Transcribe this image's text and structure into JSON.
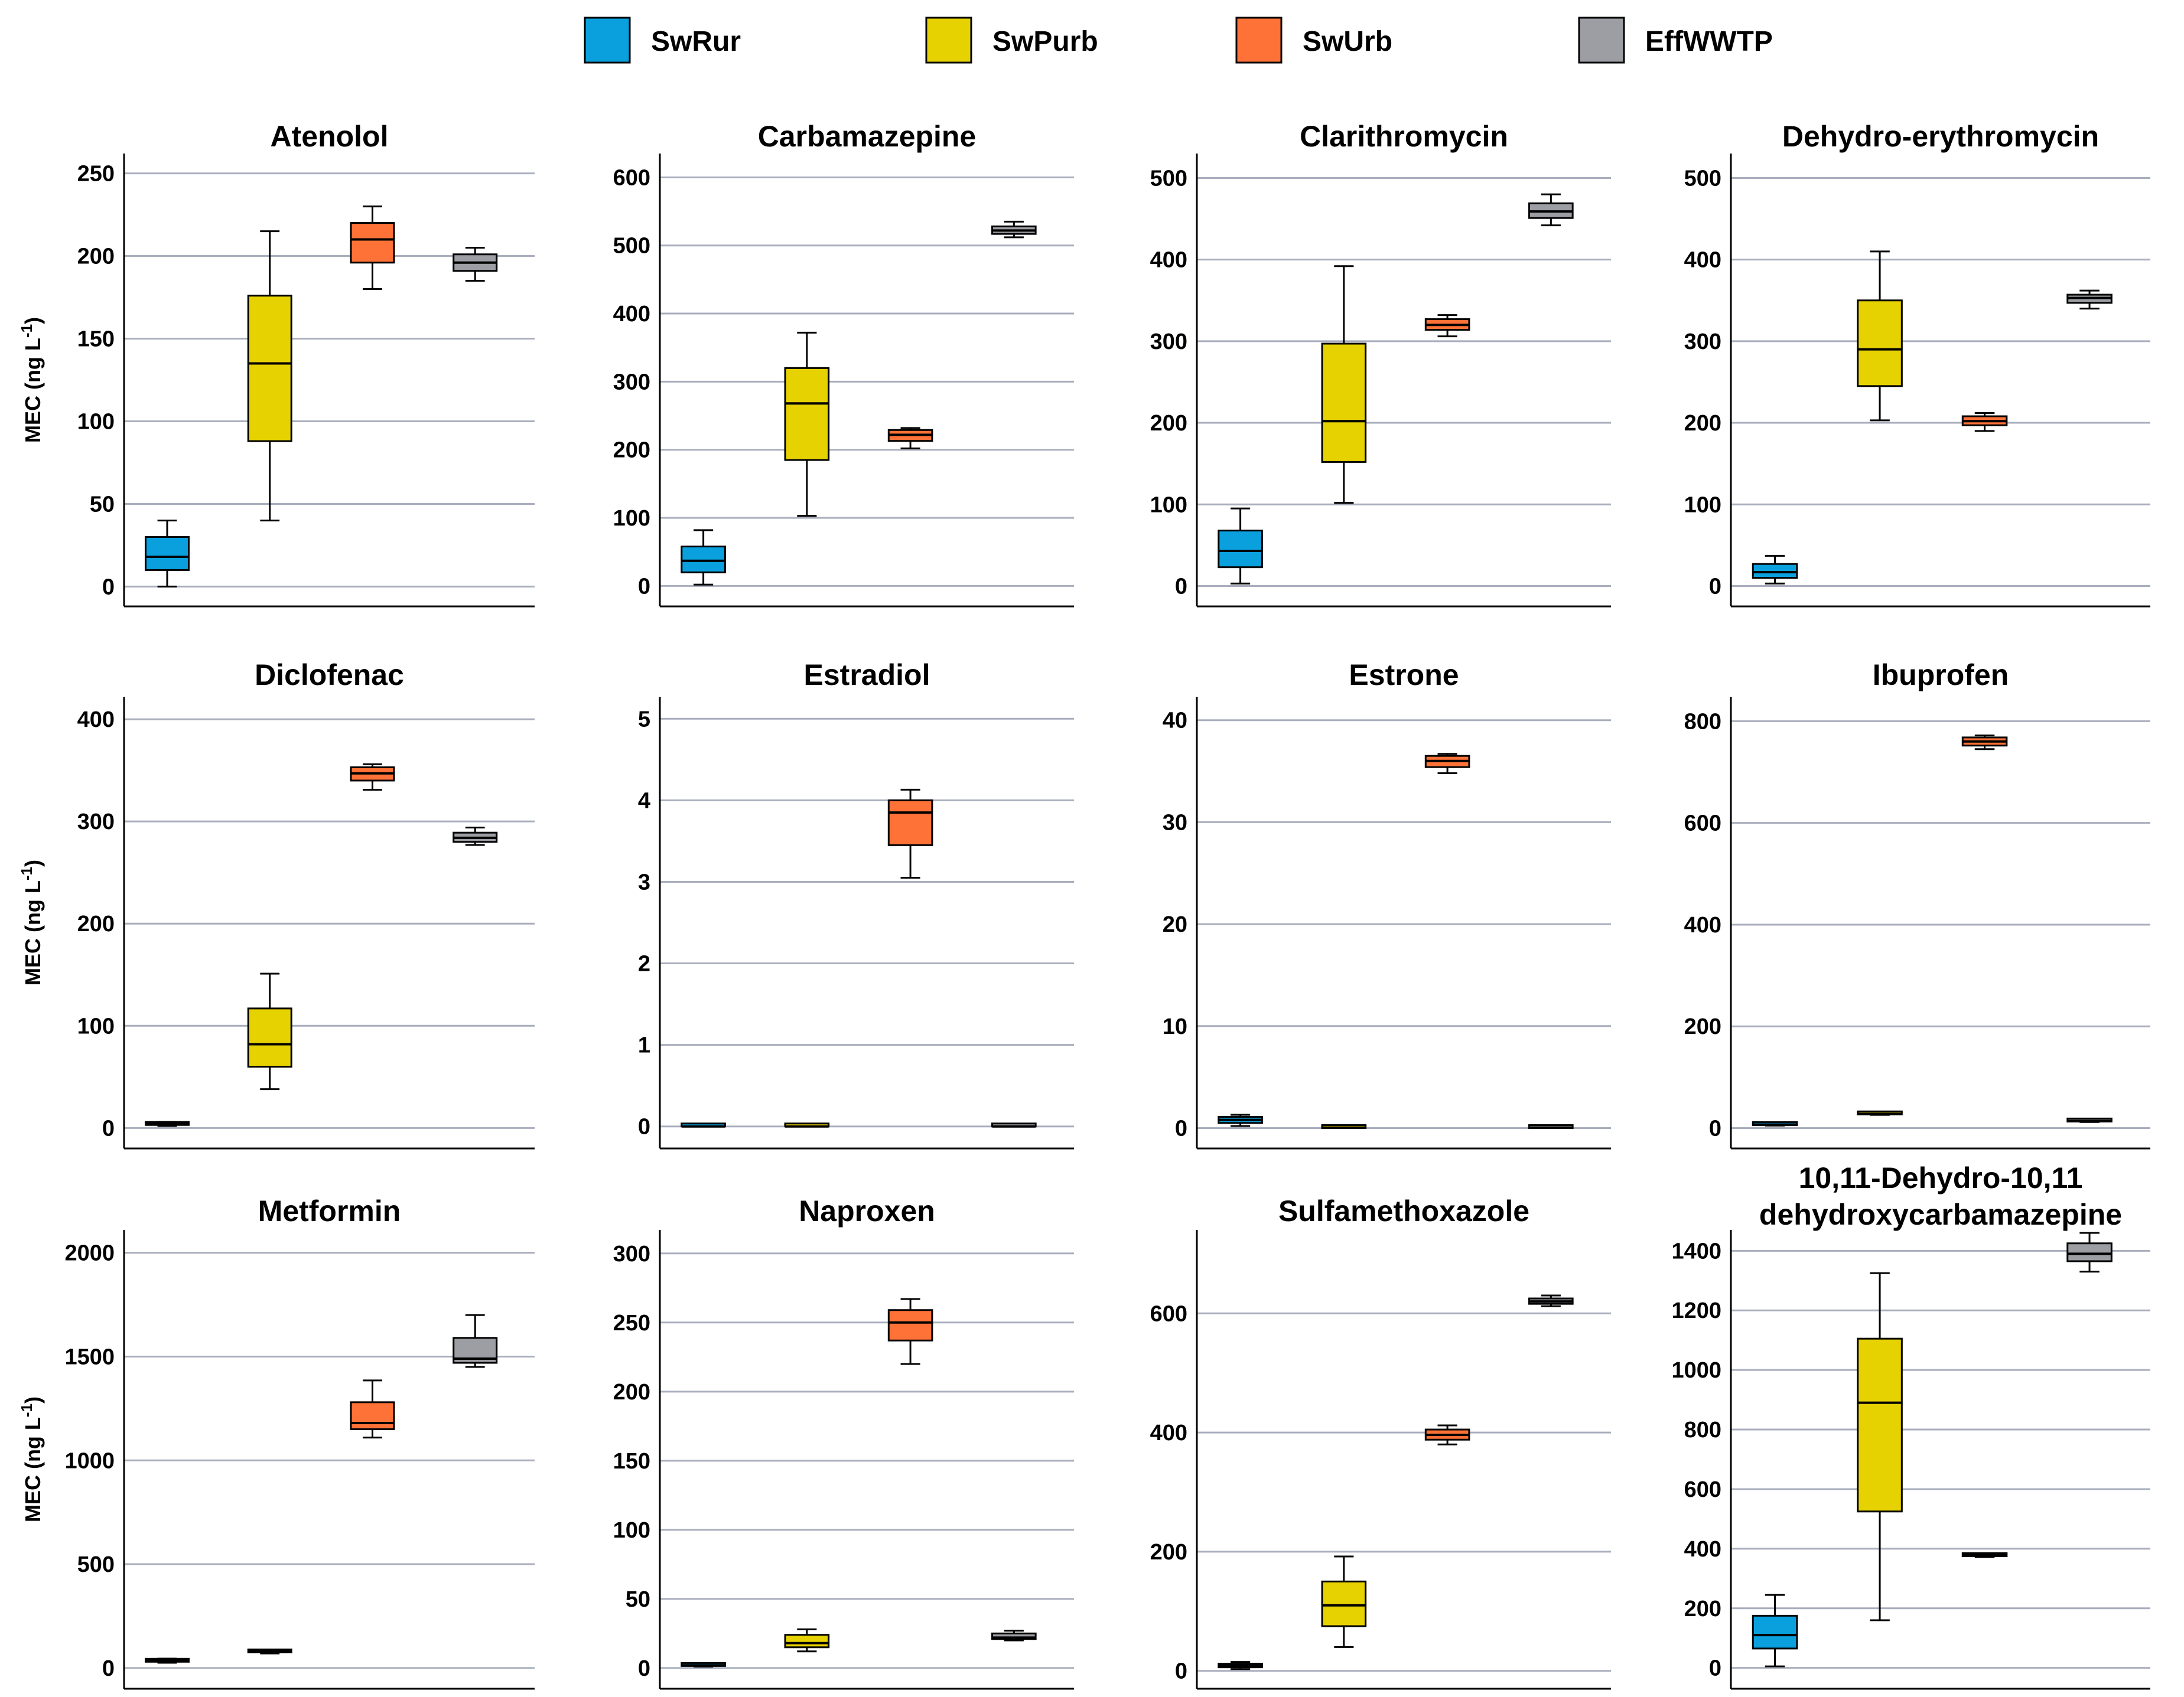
{
  "legend": [
    {
      "key": "SwRur",
      "label": "SwRur",
      "color": "#0aa0de"
    },
    {
      "key": "SwPurb",
      "label": "SwPurb",
      "color": "#e6d200"
    },
    {
      "key": "SwUrb",
      "label": "SwUrb",
      "color": "#ff7237"
    },
    {
      "key": "EffWWTP",
      "label": "EffWWTP",
      "color": "#9c9ea3"
    }
  ],
  "ylabel": {
    "main": "MEC (ng L",
    "sup": "-1",
    "close": ")"
  },
  "chart_data": [
    {
      "type": "box",
      "title": [
        "Atenolol"
      ],
      "ylim": [
        -12,
        262
      ],
      "yticks": [
        "0",
        "50",
        "100",
        "150",
        "200",
        "250"
      ],
      "tick_values": [
        0,
        50,
        100,
        150,
        200,
        250
      ],
      "show_ylabel": true,
      "series": [
        {
          "name": "SwRur",
          "min": 0,
          "q1": 10,
          "median": 18,
          "q3": 30,
          "max": 40
        },
        {
          "name": "SwPurb",
          "min": 40,
          "q1": 88,
          "median": 135,
          "q3": 176,
          "max": 215
        },
        {
          "name": "SwUrb",
          "min": 180,
          "q1": 196,
          "median": 210,
          "q3": 220,
          "max": 230
        },
        {
          "name": "EffWWTP",
          "min": 185,
          "q1": 191,
          "median": 196,
          "q3": 201,
          "max": 205
        }
      ]
    },
    {
      "type": "box",
      "title": [
        "Carbamazepine"
      ],
      "ylim": [
        -30,
        635
      ],
      "yticks": [
        "0",
        "100",
        "200",
        "300",
        "400",
        "500",
        "600"
      ],
      "tick_values": [
        0,
        100,
        200,
        300,
        400,
        500,
        600
      ],
      "show_ylabel": false,
      "series": [
        {
          "name": "SwRur",
          "min": 2,
          "q1": 20,
          "median": 37,
          "q3": 58,
          "max": 82
        },
        {
          "name": "SwPurb",
          "min": 103,
          "q1": 185,
          "median": 268,
          "q3": 320,
          "max": 372
        },
        {
          "name": "SwUrb",
          "min": 202,
          "q1": 213,
          "median": 222,
          "q3": 229,
          "max": 232
        },
        {
          "name": "EffWWTP",
          "min": 512,
          "q1": 517,
          "median": 522,
          "q3": 528,
          "max": 535
        }
      ]
    },
    {
      "type": "box",
      "title": [
        "Clarithromycin"
      ],
      "ylim": [
        -25,
        530
      ],
      "yticks": [
        "0",
        "100",
        "200",
        "300",
        "400",
        "500"
      ],
      "tick_values": [
        0,
        100,
        200,
        300,
        400,
        500
      ],
      "show_ylabel": false,
      "series": [
        {
          "name": "SwRur",
          "min": 3,
          "q1": 23,
          "median": 43,
          "q3": 68,
          "max": 95
        },
        {
          "name": "SwPurb",
          "min": 102,
          "q1": 152,
          "median": 202,
          "q3": 297,
          "max": 392
        },
        {
          "name": "SwUrb",
          "min": 306,
          "q1": 314,
          "median": 320,
          "q3": 327,
          "max": 332
        },
        {
          "name": "EffWWTP",
          "min": 442,
          "q1": 451,
          "median": 459,
          "q3": 469,
          "max": 480
        }
      ]
    },
    {
      "type": "box",
      "title": [
        "Dehydro-erythromycin"
      ],
      "ylim": [
        -25,
        530
      ],
      "yticks": [
        "0",
        "100",
        "200",
        "300",
        "400",
        "500"
      ],
      "tick_values": [
        0,
        100,
        200,
        300,
        400,
        500
      ],
      "show_ylabel": false,
      "series": [
        {
          "name": "SwRur",
          "min": 3,
          "q1": 10,
          "median": 17,
          "q3": 27,
          "max": 37
        },
        {
          "name": "SwPurb",
          "min": 203,
          "q1": 245,
          "median": 290,
          "q3": 350,
          "max": 410
        },
        {
          "name": "SwUrb",
          "min": 190,
          "q1": 197,
          "median": 202,
          "q3": 208,
          "max": 212
        },
        {
          "name": "EffWWTP",
          "min": 340,
          "q1": 347,
          "median": 353,
          "q3": 357,
          "max": 362
        }
      ]
    },
    {
      "type": "box",
      "title": [
        "Diclofenac"
      ],
      "ylim": [
        -20,
        422
      ],
      "yticks": [
        "0",
        "100",
        "200",
        "300",
        "400"
      ],
      "tick_values": [
        0,
        100,
        200,
        300,
        400
      ],
      "show_ylabel": true,
      "series": [
        {
          "name": "SwRur",
          "min": 2,
          "q1": 3,
          "median": 4,
          "q3": 5,
          "max": 6
        },
        {
          "name": "SwPurb",
          "min": 38,
          "q1": 60,
          "median": 82,
          "q3": 117,
          "max": 151
        },
        {
          "name": "SwUrb",
          "min": 331,
          "q1": 340,
          "median": 347,
          "q3": 353,
          "max": 356
        },
        {
          "name": "EffWWTP",
          "min": 277,
          "q1": 280,
          "median": 284,
          "q3": 289,
          "max": 294
        }
      ]
    },
    {
      "type": "box",
      "title": [
        "Estradiol"
      ],
      "ylim": [
        -0.27,
        5.27
      ],
      "yticks": [
        "0",
        "1",
        "2",
        "3",
        "4",
        "5"
      ],
      "tick_values": [
        0,
        1,
        2,
        3,
        4,
        5
      ],
      "show_ylabel": false,
      "series": [
        {
          "name": "SwRur",
          "min": 0,
          "q1": 0,
          "median": 0,
          "q3": 0.01,
          "max": 0.01
        },
        {
          "name": "SwPurb",
          "min": 0,
          "q1": 0,
          "median": 0,
          "q3": 0.01,
          "max": 0.01
        },
        {
          "name": "SwUrb",
          "min": 3.05,
          "q1": 3.45,
          "median": 3.85,
          "q3": 4.0,
          "max": 4.13
        },
        {
          "name": "EffWWTP",
          "min": 0,
          "q1": 0,
          "median": 0,
          "q3": 0.01,
          "max": 0.01
        }
      ]
    },
    {
      "type": "box",
      "title": [
        "Estrone"
      ],
      "ylim": [
        -2,
        42.3
      ],
      "yticks": [
        "0",
        "10",
        "20",
        "30",
        "40"
      ],
      "tick_values": [
        0,
        10,
        20,
        30,
        40
      ],
      "show_ylabel": false,
      "series": [
        {
          "name": "SwRur",
          "min": 0.2,
          "q1": 0.5,
          "median": 0.8,
          "q3": 1.1,
          "max": 1.3
        },
        {
          "name": "SwPurb",
          "min": 0,
          "q1": 0,
          "median": 0.05,
          "q3": 0.1,
          "max": 0.1
        },
        {
          "name": "SwUrb",
          "min": 34.8,
          "q1": 35.4,
          "median": 36.0,
          "q3": 36.5,
          "max": 36.7
        },
        {
          "name": "EffWWTP",
          "min": 0,
          "q1": 0,
          "median": 0.05,
          "q3": 0.1,
          "max": 0.1
        }
      ]
    },
    {
      "type": "box",
      "title": [
        "Ibuprofen"
      ],
      "ylim": [
        -40,
        848
      ],
      "yticks": [
        "0",
        "200",
        "400",
        "600",
        "800"
      ],
      "tick_values": [
        0,
        200,
        400,
        600,
        800
      ],
      "show_ylabel": false,
      "series": [
        {
          "name": "SwRur",
          "min": 5,
          "q1": 6,
          "median": 7,
          "q3": 8,
          "max": 9
        },
        {
          "name": "SwPurb",
          "min": 26,
          "q1": 27,
          "median": 28,
          "q3": 29,
          "max": 30
        },
        {
          "name": "SwUrb",
          "min": 745,
          "q1": 752,
          "median": 760,
          "q3": 768,
          "max": 772
        },
        {
          "name": "EffWWTP",
          "min": 12,
          "q1": 13,
          "median": 14,
          "q3": 15,
          "max": 16
        }
      ]
    },
    {
      "type": "box",
      "title": [
        "Metformin"
      ],
      "ylim": [
        -100,
        2110
      ],
      "yticks": [
        "0",
        "500",
        "1000",
        "1500",
        "2000"
      ],
      "tick_values": [
        0,
        500,
        1000,
        1500,
        2000
      ],
      "show_ylabel": true,
      "series": [
        {
          "name": "SwRur",
          "min": 25,
          "q1": 30,
          "median": 35,
          "q3": 40,
          "max": 45
        },
        {
          "name": "SwPurb",
          "min": 70,
          "q1": 75,
          "median": 80,
          "q3": 84,
          "max": 88
        },
        {
          "name": "SwUrb",
          "min": 1110,
          "q1": 1150,
          "median": 1180,
          "q3": 1280,
          "max": 1385
        },
        {
          "name": "EffWWTP",
          "min": 1450,
          "q1": 1470,
          "median": 1490,
          "q3": 1590,
          "max": 1700
        }
      ]
    },
    {
      "type": "box",
      "title": [
        "Naproxen"
      ],
      "ylim": [
        -15,
        317
      ],
      "yticks": [
        "0",
        "50",
        "100",
        "150",
        "200",
        "250",
        "300"
      ],
      "tick_values": [
        0,
        50,
        100,
        150,
        200,
        250,
        300
      ],
      "show_ylabel": false,
      "series": [
        {
          "name": "SwRur",
          "min": 1,
          "q1": 1.5,
          "median": 2,
          "q3": 2.5,
          "max": 3
        },
        {
          "name": "SwPurb",
          "min": 12,
          "q1": 15,
          "median": 18,
          "q3": 24,
          "max": 28
        },
        {
          "name": "SwUrb",
          "min": 220,
          "q1": 237,
          "median": 250,
          "q3": 259,
          "max": 267
        },
        {
          "name": "EffWWTP",
          "min": 20,
          "q1": 21,
          "median": 22,
          "q3": 25,
          "max": 27
        }
      ]
    },
    {
      "type": "box",
      "title": [
        "Sulfamethoxazole"
      ],
      "ylim": [
        -30,
        740
      ],
      "yticks": [
        "0",
        "200",
        "400",
        "600"
      ],
      "tick_values": [
        0,
        200,
        400,
        600
      ],
      "show_ylabel": false,
      "series": [
        {
          "name": "SwRur",
          "min": 3,
          "q1": 6,
          "median": 9,
          "q3": 12,
          "max": 15
        },
        {
          "name": "SwPurb",
          "min": 40,
          "q1": 75,
          "median": 110,
          "q3": 150,
          "max": 192
        },
        {
          "name": "SwUrb",
          "min": 380,
          "q1": 388,
          "median": 396,
          "q3": 405,
          "max": 412
        },
        {
          "name": "EffWWTP",
          "min": 612,
          "q1": 616,
          "median": 620,
          "q3": 625,
          "max": 630
        }
      ]
    },
    {
      "type": "box",
      "title": [
        "10,11-Dehydro-10,11",
        "dehydroxycarbamazepine"
      ],
      "ylim": [
        -70,
        1470
      ],
      "yticks": [
        "0",
        "200",
        "400",
        "600",
        "800",
        "1000",
        "1200",
        "1400"
      ],
      "tick_values": [
        0,
        200,
        400,
        600,
        800,
        1000,
        1200,
        1400
      ],
      "show_ylabel": false,
      "series": [
        {
          "name": "SwRur",
          "min": 5,
          "q1": 65,
          "median": 110,
          "q3": 175,
          "max": 245
        },
        {
          "name": "SwPurb",
          "min": 160,
          "q1": 525,
          "median": 890,
          "q3": 1105,
          "max": 1325
        },
        {
          "name": "SwUrb",
          "min": 372,
          "q1": 375,
          "median": 378,
          "q3": 381,
          "max": 384
        },
        {
          "name": "EffWWTP",
          "min": 1330,
          "q1": 1365,
          "median": 1390,
          "q3": 1425,
          "max": 1460
        }
      ]
    }
  ]
}
